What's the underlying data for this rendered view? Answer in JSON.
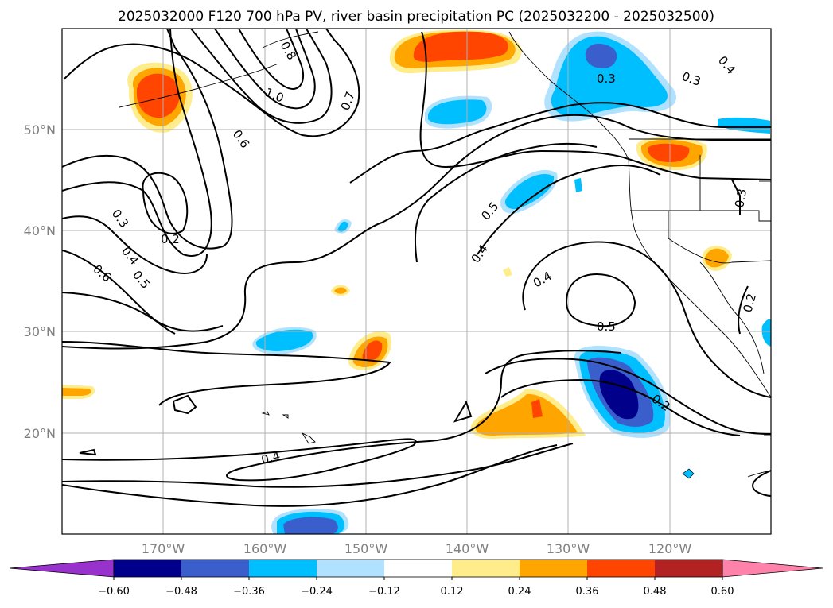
{
  "title": "2025032000 F120 700 hPa PV, river basin precipitation PC (2025032200 - 2025032500)",
  "map": {
    "lon_range": [
      -180,
      -110
    ],
    "lat_range": [
      10,
      60
    ],
    "lat_ticks": [
      {
        "value": 50,
        "label": "50°N"
      },
      {
        "value": 40,
        "label": "40°N"
      },
      {
        "value": 30,
        "label": "30°N"
      },
      {
        "value": 20,
        "label": "20°N"
      }
    ],
    "lon_ticks": [
      {
        "value": -170,
        "label": "170°W"
      },
      {
        "value": -160,
        "label": "160°W"
      },
      {
        "value": -150,
        "label": "150°W"
      },
      {
        "value": -140,
        "label": "140°W"
      },
      {
        "value": -130,
        "label": "130°W"
      },
      {
        "value": -120,
        "label": "120°W"
      }
    ],
    "grid": true
  },
  "contour_labels": [
    {
      "text": "1.0"
    },
    {
      "text": "0.8"
    },
    {
      "text": "0.7"
    },
    {
      "text": "0.6"
    },
    {
      "text": "0.3"
    },
    {
      "text": "0.2"
    },
    {
      "text": "0.4"
    },
    {
      "text": "0.5"
    },
    {
      "text": "0.6"
    },
    {
      "text": "0.5"
    },
    {
      "text": "0.4"
    },
    {
      "text": "0.4"
    },
    {
      "text": "0.5"
    },
    {
      "text": "0.3"
    },
    {
      "text": "0.3"
    },
    {
      "text": "0.4"
    },
    {
      "text": "0.3"
    },
    {
      "text": "0.2"
    },
    {
      "text": "0.2"
    },
    {
      "text": "0.4"
    }
  ],
  "colorbar": {
    "colors": [
      "#9932cc",
      "#00008b",
      "#3a5fcd",
      "#00bfff",
      "#b0e2ff",
      "#ffffff",
      "#ffec8b",
      "#ffa500",
      "#ff4500",
      "#b22222",
      "#ff82ab"
    ],
    "tick_labels": [
      "−0.60",
      "−0.48",
      "−0.36",
      "−0.24",
      "−0.12",
      "0.12",
      "0.24",
      "0.36",
      "0.48",
      "0.60"
    ]
  }
}
